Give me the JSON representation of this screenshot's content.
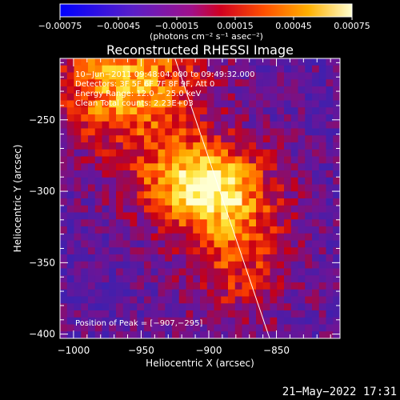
{
  "chart_data": {
    "type": "heatmap",
    "title": "Reconstructed RHESSI Image",
    "xlabel": "Heliocentric X (arcsec)",
    "ylabel": "Heliocentric Y (arcsec)",
    "xlim": [
      -1010,
      -803
    ],
    "ylim": [
      -403,
      -207
    ],
    "xticks": [
      -1000,
      -950,
      -900,
      -850
    ],
    "yticks": [
      -400,
      -350,
      -300,
      -250
    ],
    "xtick_labels": [
      "−1000",
      "−950",
      "−900",
      "−850"
    ],
    "ytick_labels": [
      "−400",
      "−350",
      "−300",
      "−250"
    ],
    "colorbar": {
      "range": [
        -0.00075,
        0.00075
      ],
      "ticks": [
        -0.00075,
        -0.00045,
        -0.00015,
        0.00015,
        0.00045,
        0.00075
      ],
      "tick_labels": [
        "−0.00075",
        "−0.00045",
        "−0.00015",
        "0.00015",
        "0.00045",
        "0.00075"
      ],
      "unit_label": "(photons cm⁻² s⁻¹ asec⁻²)"
    },
    "info_lines": [
      "10−Jun−2011 09:48:04.000 to 09:49:32.000",
      "Detectors: 3F 5F 6F 7F 8F 9F, Att 0",
      "Energy Range: 12.0 − 25.0 keV",
      "Clean    Total counts: 2.23E+03"
    ],
    "peak_label": "Position of Peak = [−907,−295]",
    "peak": [
      -907,
      -295
    ],
    "limb_line": [
      [
        -925,
        -207
      ],
      [
        -855,
        -403
      ]
    ]
  },
  "timestamp": "21−May−2022 17:31"
}
